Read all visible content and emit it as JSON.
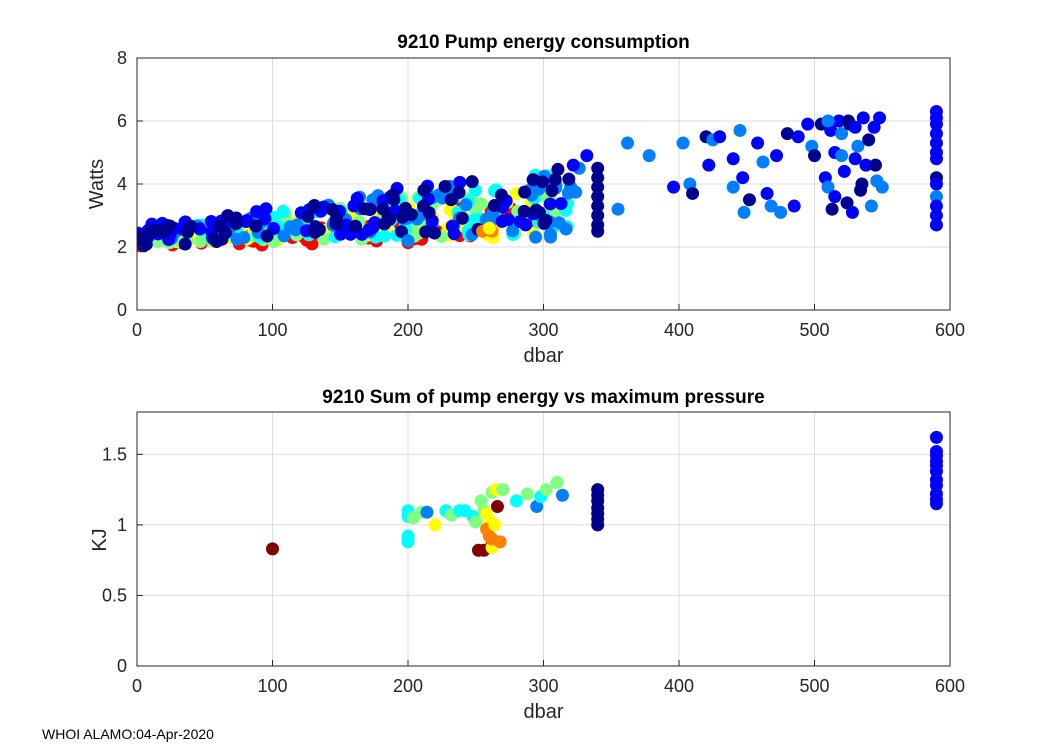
{
  "footer_text": "WHOI ALAMO:04-Apr-2020",
  "colors": {
    "axis": "#262626",
    "grid": "#dcdcdc",
    "colormap": [
      "#00008f",
      "#0000ff",
      "#0080ff",
      "#00ffff",
      "#80ff80",
      "#ffff00",
      "#ff8000",
      "#ff0000",
      "#800000"
    ]
  },
  "chart_data": [
    {
      "type": "scatter",
      "title": "9210 Pump energy consumption",
      "xlabel": "dbar",
      "ylabel": "Watts",
      "xlim": [
        0,
        600
      ],
      "ylim": [
        0,
        8
      ],
      "xticks": [
        0,
        100,
        200,
        300,
        400,
        500,
        600
      ],
      "yticks": [
        0,
        2,
        4,
        6,
        8
      ],
      "grid": true,
      "colorscale": "jet (color = profile index)",
      "series_bands": [
        {
          "name": "band-red",
          "color_index": 7,
          "x": [
            0,
            300
          ],
          "y_start": [
            2.0,
            2.2
          ],
          "y_end": [
            2.1,
            3.5
          ]
        },
        {
          "name": "band-yellow",
          "color_index": 5,
          "x": [
            0,
            300
          ],
          "y_start": [
            2.1,
            2.4
          ],
          "y_end": [
            2.3,
            3.9
          ]
        },
        {
          "name": "band-green",
          "color_index": 4,
          "x": [
            0,
            310
          ],
          "y_start": [
            2.1,
            2.3
          ],
          "y_end": [
            2.4,
            4.3
          ]
        },
        {
          "name": "band-cyan",
          "color_index": 3,
          "x": [
            0,
            330
          ],
          "y_start": [
            2.2,
            2.4
          ],
          "y_end": [
            2.5,
            4.5
          ]
        },
        {
          "name": "band-lightblue",
          "color_index": 2,
          "x": [
            0,
            330
          ],
          "y_start": [
            2.2,
            2.3
          ],
          "y_end": [
            2.6,
            4.6
          ]
        },
        {
          "name": "band-blue",
          "color_index": 1,
          "x": [
            0,
            320
          ],
          "y_start": [
            2.2,
            2.5
          ],
          "y_end": [
            2.7,
            4.8
          ]
        },
        {
          "name": "band-navy",
          "color_index": 0,
          "x": [
            0,
            320
          ],
          "y_start": [
            2.0,
            2.6
          ],
          "y_end": [
            2.6,
            4.6
          ]
        }
      ],
      "points": [
        [
          263,
          2.3,
          5
        ],
        [
          258,
          2.4,
          5
        ],
        [
          262,
          2.5,
          6
        ],
        [
          255,
          2.5,
          6
        ],
        [
          260,
          2.6,
          5
        ],
        [
          200,
          2.2,
          2
        ],
        [
          340,
          4.5,
          0
        ],
        [
          340,
          4.2,
          0
        ],
        [
          340,
          3.9,
          0
        ],
        [
          340,
          3.6,
          0
        ],
        [
          340,
          3.3,
          0
        ],
        [
          340,
          3.0,
          0
        ],
        [
          340,
          2.7,
          0
        ],
        [
          340,
          2.5,
          0
        ],
        [
          332,
          4.9,
          1
        ],
        [
          322,
          4.6,
          1
        ],
        [
          362,
          5.3,
          2
        ],
        [
          378,
          4.9,
          2
        ],
        [
          355,
          3.2,
          2
        ],
        [
          396,
          3.9,
          1
        ],
        [
          403,
          5.3,
          2
        ],
        [
          408,
          4.0,
          2
        ],
        [
          410,
          3.7,
          0
        ],
        [
          420,
          5.5,
          0
        ],
        [
          425,
          5.4,
          2
        ],
        [
          422,
          4.6,
          1
        ],
        [
          430,
          5.5,
          1
        ],
        [
          440,
          4.8,
          1
        ],
        [
          445,
          5.7,
          2
        ],
        [
          447,
          4.2,
          1
        ],
        [
          440,
          3.9,
          2
        ],
        [
          448,
          3.1,
          2
        ],
        [
          452,
          3.5,
          0
        ],
        [
          458,
          5.3,
          1
        ],
        [
          462,
          4.7,
          2
        ],
        [
          465,
          3.7,
          1
        ],
        [
          468,
          3.3,
          2
        ],
        [
          472,
          4.9,
          1
        ],
        [
          475,
          3.1,
          2
        ],
        [
          480,
          5.6,
          0
        ],
        [
          485,
          3.3,
          1
        ],
        [
          488,
          5.5,
          1
        ],
        [
          495,
          5.9,
          1
        ],
        [
          498,
          5.2,
          2
        ],
        [
          500,
          4.9,
          0
        ],
        [
          505,
          5.9,
          0
        ],
        [
          508,
          4.2,
          1
        ],
        [
          510,
          3.9,
          2
        ],
        [
          512,
          5.7,
          1
        ],
        [
          513,
          3.2,
          0
        ],
        [
          515,
          5.0,
          1
        ],
        [
          518,
          6.0,
          1
        ],
        [
          520,
          5.6,
          2
        ],
        [
          522,
          4.4,
          1
        ],
        [
          524,
          3.4,
          0
        ],
        [
          526,
          5.9,
          0
        ],
        [
          528,
          3.1,
          1
        ],
        [
          530,
          4.8,
          1
        ],
        [
          532,
          5.2,
          2
        ],
        [
          534,
          3.8,
          0
        ],
        [
          536,
          6.1,
          1
        ],
        [
          538,
          4.6,
          1
        ],
        [
          540,
          5.4,
          0
        ],
        [
          542,
          3.3,
          2
        ],
        [
          544,
          5.8,
          1
        ],
        [
          546,
          4.1,
          2
        ],
        [
          548,
          6.1,
          1
        ],
        [
          550,
          3.9,
          2
        ],
        [
          525,
          6.0,
          0
        ],
        [
          530,
          5.8,
          1
        ],
        [
          535,
          4.0,
          0
        ],
        [
          520,
          4.9,
          2
        ],
        [
          515,
          3.6,
          1
        ],
        [
          545,
          4.6,
          0
        ],
        [
          510,
          6.0,
          2
        ],
        [
          590,
          6.3,
          1
        ],
        [
          590,
          6.1,
          1
        ],
        [
          590,
          5.9,
          1
        ],
        [
          590,
          5.6,
          1
        ],
        [
          590,
          5.3,
          1
        ],
        [
          590,
          5.0,
          1
        ],
        [
          590,
          4.8,
          1
        ],
        [
          590,
          4.2,
          0
        ],
        [
          590,
          4.0,
          1
        ],
        [
          590,
          3.6,
          2
        ],
        [
          590,
          3.3,
          1
        ],
        [
          590,
          3.0,
          1
        ],
        [
          590,
          2.7,
          1
        ]
      ]
    },
    {
      "type": "scatter",
      "title": "9210 Sum of pump energy vs maximum pressure",
      "xlabel": "dbar",
      "ylabel": "KJ",
      "xlim": [
        0,
        600
      ],
      "ylim": [
        0,
        1.8
      ],
      "xticks": [
        0,
        100,
        200,
        300,
        400,
        500,
        600
      ],
      "yticks": [
        0,
        0.5,
        1,
        1.5
      ],
      "ytick_labels": [
        "0",
        "0.5",
        "1",
        "1.5"
      ],
      "grid": true,
      "points": [
        [
          100,
          0.83,
          8
        ],
        [
          200,
          1.1,
          3
        ],
        [
          200,
          1.06,
          3
        ],
        [
          200,
          0.92,
          3
        ],
        [
          200,
          0.88,
          3
        ],
        [
          204,
          1.05,
          4
        ],
        [
          210,
          1.09,
          4
        ],
        [
          214,
          1.09,
          2
        ],
        [
          220,
          1.0,
          5
        ],
        [
          228,
          1.1,
          3
        ],
        [
          232,
          1.07,
          4
        ],
        [
          238,
          1.1,
          3
        ],
        [
          242,
          1.1,
          3
        ],
        [
          248,
          1.06,
          3
        ],
        [
          250,
          1.02,
          4
        ],
        [
          252,
          0.82,
          8
        ],
        [
          256,
          0.82,
          8
        ],
        [
          254,
          1.17,
          4
        ],
        [
          256,
          1.1,
          4
        ],
        [
          258,
          1.08,
          5
        ],
        [
          260,
          1.03,
          5
        ],
        [
          258,
          0.97,
          6
        ],
        [
          260,
          0.92,
          6
        ],
        [
          262,
          0.86,
          7
        ],
        [
          262,
          0.84,
          5
        ],
        [
          262,
          0.9,
          6
        ],
        [
          264,
          1.0,
          5
        ],
        [
          262,
          1.23,
          4
        ],
        [
          265,
          1.25,
          5
        ],
        [
          266,
          1.13,
          8
        ],
        [
          268,
          0.88,
          6
        ],
        [
          270,
          1.25,
          4
        ],
        [
          280,
          1.17,
          3
        ],
        [
          288,
          1.22,
          4
        ],
        [
          295,
          1.13,
          2
        ],
        [
          298,
          1.2,
          3
        ],
        [
          302,
          1.25,
          4
        ],
        [
          310,
          1.3,
          4
        ],
        [
          314,
          1.21,
          2
        ],
        [
          340,
          1.25,
          0
        ],
        [
          340,
          1.21,
          0
        ],
        [
          340,
          1.17,
          0
        ],
        [
          340,
          1.12,
          0
        ],
        [
          340,
          1.08,
          0
        ],
        [
          340,
          1.04,
          0
        ],
        [
          340,
          1.0,
          0
        ],
        [
          590,
          1.62,
          1
        ],
        [
          590,
          1.52,
          1
        ],
        [
          590,
          1.49,
          1
        ],
        [
          590,
          1.45,
          1
        ],
        [
          590,
          1.42,
          1
        ],
        [
          590,
          1.38,
          1
        ],
        [
          590,
          1.32,
          1
        ],
        [
          590,
          1.28,
          1
        ],
        [
          590,
          1.22,
          1
        ],
        [
          590,
          1.18,
          1
        ],
        [
          590,
          1.15,
          1
        ]
      ]
    }
  ]
}
